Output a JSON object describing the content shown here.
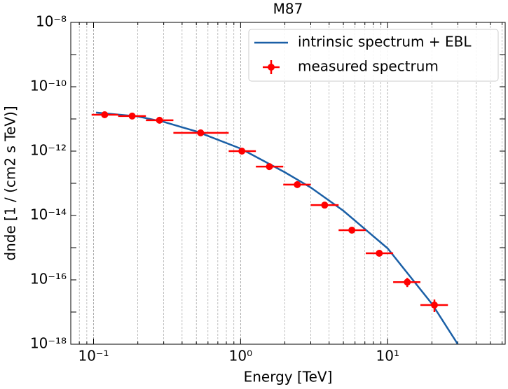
{
  "chart_data": {
    "type": "scatter",
    "title": "M87",
    "x_label": "Energy [TeV]",
    "y_label": "dnde [1 / (cm2 s TeV)]",
    "x_scale": "log",
    "y_scale": "log",
    "xlim": [
      0.07,
      63
    ],
    "ylim": [
      1e-18,
      1e-08
    ],
    "xticks": [
      {
        "value": 0.1,
        "label": "10⁻¹"
      },
      {
        "value": 1,
        "label": "10⁰"
      },
      {
        "value": 10,
        "label": "10¹"
      }
    ],
    "xminorticks": [
      0.08,
      0.09,
      0.2,
      0.3,
      0.4,
      0.5,
      0.6,
      0.7,
      0.8,
      0.9,
      2,
      3,
      4,
      5,
      6,
      7,
      8,
      9,
      20,
      30,
      40,
      50,
      60
    ],
    "yticks": [
      {
        "value": 1e-18,
        "label": "10⁻¹⁸"
      },
      {
        "value": 1e-16,
        "label": "10⁻¹⁶"
      },
      {
        "value": 1e-14,
        "label": "10⁻¹⁴"
      },
      {
        "value": 1e-12,
        "label": "10⁻¹²"
      },
      {
        "value": 1e-10,
        "label": "10⁻¹⁰"
      },
      {
        "value": 1e-08,
        "label": "10⁻⁸"
      }
    ],
    "yminorticks": [
      1e-17,
      1e-15,
      1e-13,
      1e-11,
      1e-09
    ],
    "xgrid": true,
    "legend": "upper right",
    "series": [
      {
        "name": "intrinsic spectrum + EBL",
        "type": "line",
        "color": "#1a5fa6",
        "x": [
          0.104,
          0.2,
          0.3,
          0.5,
          1,
          2,
          3,
          5,
          10,
          20,
          30
        ],
        "values": [
          1.58e-11,
          1.2e-11,
          8.1e-12,
          4.1e-12,
          1.2e-12,
          2.2e-13,
          7.4e-14,
          1.4e-14,
          9.5e-16,
          1.8e-17,
          1e-18
        ]
      },
      {
        "name": "measured spectrum",
        "type": "errorbar",
        "color": "#ff0000",
        "x": [
          0.119,
          0.183,
          0.281,
          0.535,
          1.02,
          1.57,
          2.43,
          3.73,
          5.71,
          8.77,
          13.6,
          20.8
        ],
        "x_min": [
          0.097,
          0.147,
          0.227,
          0.349,
          0.83,
          1.27,
          1.95,
          3.0,
          4.64,
          7.1,
          10.9,
          16.7
        ],
        "x_max": [
          0.147,
          0.227,
          0.349,
          0.83,
          1.27,
          1.95,
          3.0,
          4.64,
          7.1,
          10.9,
          16.7,
          25.7
        ],
        "values": [
          1.35e-11,
          1.23e-11,
          9.1e-12,
          3.7e-12,
          1e-12,
          3.3e-13,
          9.1e-14,
          2.1e-14,
          3.5e-15,
          6.7e-16,
          8.5e-17,
          1.65e-17
        ],
        "y_min": [
          null,
          null,
          null,
          null,
          null,
          null,
          null,
          null,
          null,
          null,
          6e-17,
          1e-17
        ],
        "y_max": [
          null,
          null,
          null,
          null,
          null,
          null,
          null,
          null,
          null,
          null,
          1.15e-16,
          2.45e-17
        ]
      }
    ]
  }
}
